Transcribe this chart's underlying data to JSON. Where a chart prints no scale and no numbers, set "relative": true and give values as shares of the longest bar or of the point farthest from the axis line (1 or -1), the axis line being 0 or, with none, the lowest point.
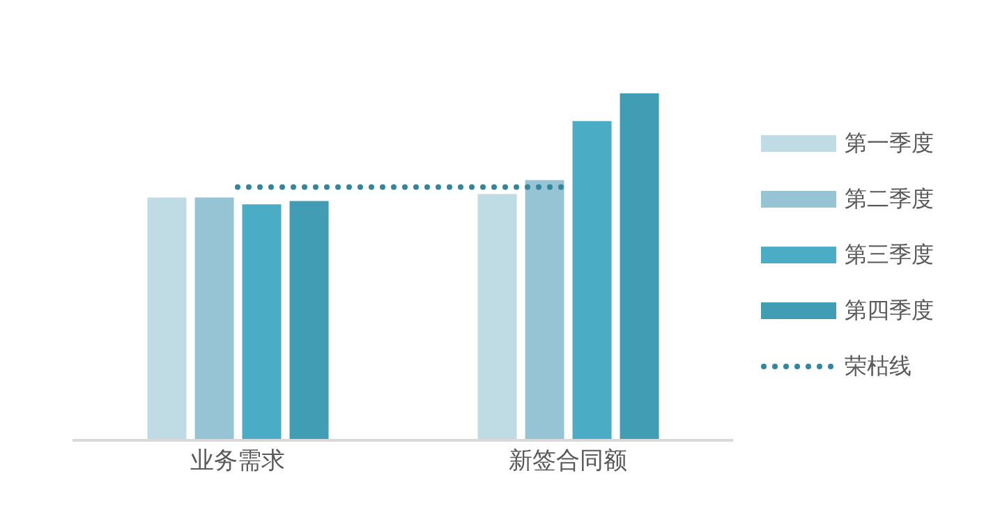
{
  "chart_data": {
    "type": "bar",
    "relative": true,
    "categories": [
      "业务需求",
      "新签合同额"
    ],
    "series": [
      {
        "name": "第一季度",
        "color": "#bfdbe4",
        "values": [
          0.7,
          0.71
        ]
      },
      {
        "name": "第二季度",
        "color": "#96c4d4",
        "values": [
          0.7,
          0.75
        ]
      },
      {
        "name": "第三季度",
        "color": "#4bacc6",
        "values": [
          0.68,
          0.92
        ]
      },
      {
        "name": "第四季度",
        "color": "#419db3",
        "values": [
          0.69,
          1
        ]
      },
      {
        "name": "荣枯线",
        "type": "line",
        "color": "#31859c",
        "line_style": "dotted",
        "marker": "none",
        "values": [
          0.73,
          0.73
        ]
      }
    ],
    "legend": "right",
    "grid": false
  }
}
